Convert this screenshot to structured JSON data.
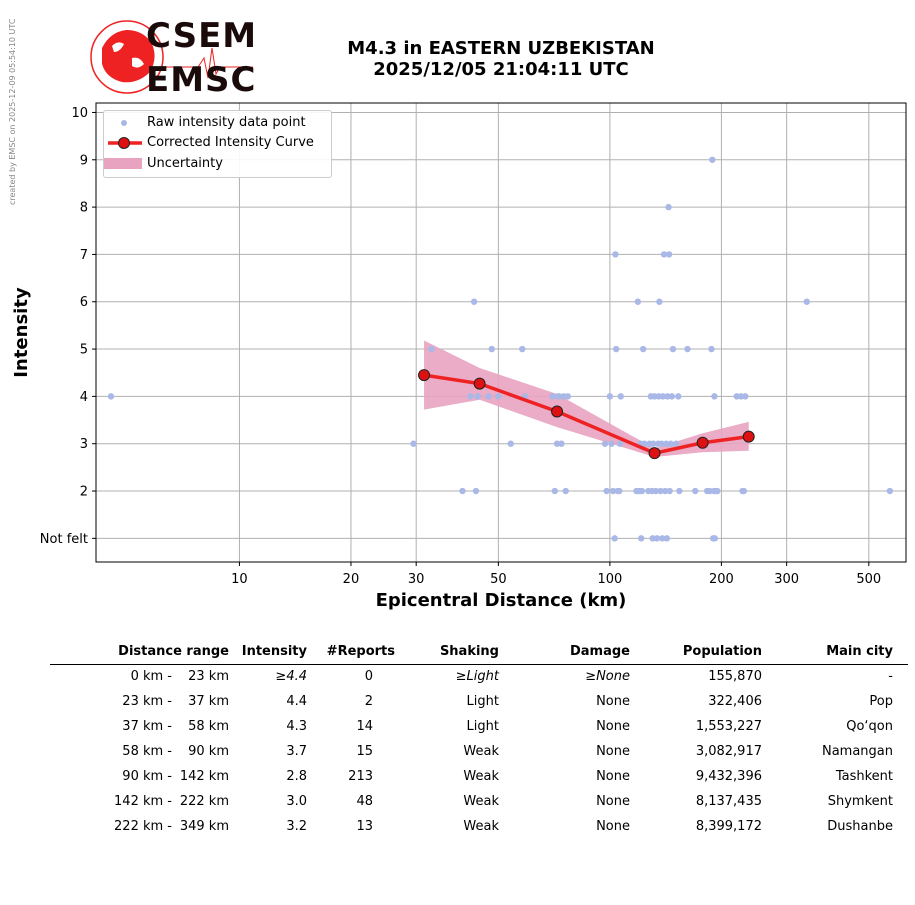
{
  "credit": "created by EMSC on 2025-12-09 05:54:10 UTC",
  "logo": {
    "line1": "CSEM",
    "line2": "EMSC"
  },
  "header": {
    "title_line1": "M4.3 in EASTERN UZBEKISTAN",
    "title_line2": "2025/12/05 21:04:11 UTC"
  },
  "colors": {
    "raw": "#a9b8e6",
    "curve": "#ee2222",
    "marker": "#dd1111",
    "band": "#e8a3c0",
    "grid": "#b0b0b0"
  },
  "chart_data": {
    "type": "scatter",
    "xlabel": "Epicentral Distance (km)",
    "ylabel": "Intensity",
    "x_scale": "log",
    "xlim": [
      4.1,
      630
    ],
    "ylim": [
      0.5,
      10.2
    ],
    "grid": true,
    "legend_position": "top-left",
    "x_ticks": [
      10,
      20,
      30,
      50,
      100,
      200,
      300,
      500
    ],
    "y_ticks": [
      {
        "v": 1,
        "label": "Not felt"
      },
      {
        "v": 2,
        "label": "2"
      },
      {
        "v": 3,
        "label": "3"
      },
      {
        "v": 4,
        "label": "4"
      },
      {
        "v": 5,
        "label": "5"
      },
      {
        "v": 6,
        "label": "6"
      },
      {
        "v": 7,
        "label": "7"
      },
      {
        "v": 8,
        "label": "8"
      },
      {
        "v": 9,
        "label": "9"
      },
      {
        "v": 10,
        "label": "10"
      }
    ],
    "series": [
      {
        "name": "Raw intensity data point",
        "kind": "scatter",
        "points": [
          [
            4.5,
            4
          ],
          [
            29.5,
            3
          ],
          [
            33,
            5
          ],
          [
            40,
            2
          ],
          [
            42,
            4
          ],
          [
            43,
            6
          ],
          [
            43.5,
            2
          ],
          [
            44,
            4
          ],
          [
            47,
            4
          ],
          [
            48,
            5
          ],
          [
            50,
            4
          ],
          [
            54,
            3
          ],
          [
            58,
            5
          ],
          [
            59,
            4
          ],
          [
            70,
            4
          ],
          [
            71,
            2
          ],
          [
            72,
            3
          ],
          [
            72.5,
            4
          ],
          [
            73,
            4
          ],
          [
            74,
            3
          ],
          [
            75,
            4
          ],
          [
            76,
            2
          ],
          [
            77,
            4
          ],
          [
            97,
            3
          ],
          [
            98,
            2
          ],
          [
            100,
            4
          ],
          [
            101,
            3
          ],
          [
            102,
            2
          ],
          [
            103,
            1
          ],
          [
            103.5,
            7
          ],
          [
            104,
            5
          ],
          [
            105,
            2
          ],
          [
            106,
            2
          ],
          [
            106.5,
            3
          ],
          [
            107,
            4
          ],
          [
            118,
            2
          ],
          [
            119,
            6
          ],
          [
            120,
            2
          ],
          [
            121,
            3
          ],
          [
            121.5,
            1
          ],
          [
            122,
            2
          ],
          [
            123,
            5
          ],
          [
            124,
            3
          ],
          [
            127,
            2
          ],
          [
            128,
            3
          ],
          [
            129,
            4
          ],
          [
            130,
            2
          ],
          [
            130.5,
            1
          ],
          [
            131,
            3
          ],
          [
            132,
            4
          ],
          [
            133,
            2
          ],
          [
            134,
            1
          ],
          [
            135,
            3
          ],
          [
            135.5,
            4
          ],
          [
            136,
            6
          ],
          [
            137,
            2
          ],
          [
            138,
            3
          ],
          [
            138.5,
            1
          ],
          [
            139,
            4
          ],
          [
            140,
            7
          ],
          [
            141,
            2
          ],
          [
            142,
            3
          ],
          [
            142.5,
            1
          ],
          [
            143,
            4
          ],
          [
            144,
            8
          ],
          [
            144.5,
            7
          ],
          [
            145,
            2
          ],
          [
            146,
            3
          ],
          [
            147,
            4
          ],
          [
            148,
            5
          ],
          [
            151,
            3
          ],
          [
            153,
            4
          ],
          [
            154,
            2
          ],
          [
            162,
            5
          ],
          [
            170,
            2
          ],
          [
            183,
            2
          ],
          [
            186,
            2
          ],
          [
            188,
            5
          ],
          [
            189,
            9
          ],
          [
            190,
            1
          ],
          [
            191,
            2
          ],
          [
            191.5,
            4
          ],
          [
            192,
            1
          ],
          [
            193,
            2
          ],
          [
            195,
            2
          ],
          [
            220,
            4
          ],
          [
            226,
            4
          ],
          [
            228,
            2
          ],
          [
            230,
            2
          ],
          [
            232,
            4
          ],
          [
            340,
            6
          ],
          [
            570,
            2
          ]
        ]
      },
      {
        "name": "Corrected Intensity Curve",
        "kind": "line",
        "points": [
          [
            31.5,
            4.45
          ],
          [
            44.5,
            4.27
          ],
          [
            72,
            3.68
          ],
          [
            132,
            2.8
          ],
          [
            178,
            3.02
          ],
          [
            237,
            3.15
          ]
        ]
      },
      {
        "name": "Uncertainty",
        "kind": "band",
        "points": [
          [
            31.5,
            3.72,
            5.18
          ],
          [
            44.5,
            3.93,
            4.6
          ],
          [
            72,
            3.35,
            4.05
          ],
          [
            132,
            2.72,
            2.9
          ],
          [
            178,
            2.82,
            3.22
          ],
          [
            237,
            2.85,
            3.46
          ]
        ]
      }
    ]
  },
  "table": {
    "headers": [
      "Distance range",
      "Intensity",
      "#Reports",
      "Shaking",
      "Damage",
      "Population",
      "Main city"
    ],
    "rows": [
      {
        "dist_a": "0 km -",
        "dist_b": "23 km",
        "intensity": "≥4.4",
        "reports": "0",
        "shaking": "≥Light",
        "damage": "≥None",
        "population": "155,870",
        "city": "-",
        "italic": true
      },
      {
        "dist_a": "23 km -",
        "dist_b": "37 km",
        "intensity": "4.4",
        "reports": "2",
        "shaking": "Light",
        "damage": "None",
        "population": "322,406",
        "city": "Pop"
      },
      {
        "dist_a": "37 km -",
        "dist_b": "58 km",
        "intensity": "4.3",
        "reports": "14",
        "shaking": "Light",
        "damage": "None",
        "population": "1,553,227",
        "city": "Qo‘qon"
      },
      {
        "dist_a": "58 km -",
        "dist_b": "90 km",
        "intensity": "3.7",
        "reports": "15",
        "shaking": "Weak",
        "damage": "None",
        "population": "3,082,917",
        "city": "Namangan"
      },
      {
        "dist_a": "90 km -",
        "dist_b": "142 km",
        "intensity": "2.8",
        "reports": "213",
        "shaking": "Weak",
        "damage": "None",
        "population": "9,432,396",
        "city": "Tashkent"
      },
      {
        "dist_a": "142 km -",
        "dist_b": "222 km",
        "intensity": "3.0",
        "reports": "48",
        "shaking": "Weak",
        "damage": "None",
        "population": "8,137,435",
        "city": "Shymkent"
      },
      {
        "dist_a": "222 km -",
        "dist_b": "349 km",
        "intensity": "3.2",
        "reports": "13",
        "shaking": "Weak",
        "damage": "None",
        "population": "8,399,172",
        "city": "Dushanbe"
      }
    ]
  }
}
